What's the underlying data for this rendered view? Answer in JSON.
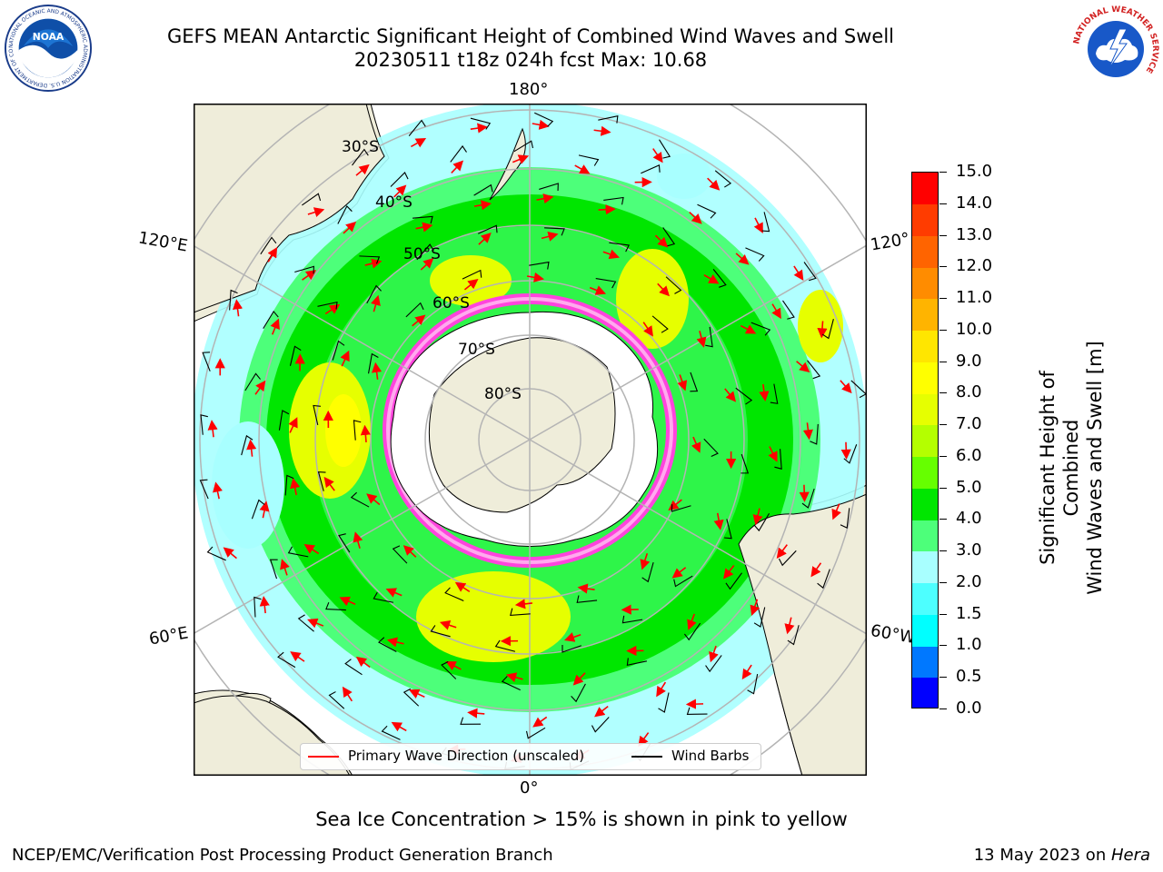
{
  "title": {
    "line1": "GEFS MEAN Antarctic Significant Height of Combined Wind Waves and Swell",
    "line2": "20230511 t18z 024h fcst   Max: 10.68"
  },
  "logos": {
    "left": {
      "icon": "noaa-logo",
      "lettering": "NOAA",
      "ring_text": "NATIONAL OCEANIC AND ATMOSPHERIC ADMINISTRATION  U.S. DEPARTMENT OF COMMERCE"
    },
    "right": {
      "icon": "nws-logo",
      "ring_text": "NATIONAL WEATHER SERVICE"
    }
  },
  "map": {
    "projection": "south-polar-stereographic",
    "longitude_labels": [
      "180°",
      "120°E",
      "120°",
      "60°E",
      "60°W",
      "0°"
    ],
    "latitude_labels": [
      "30°S",
      "40°S",
      "50°S",
      "60°S",
      "70°S",
      "80°S"
    ],
    "colors": {
      "ocean_low": "#a8ffff",
      "ocean_mid": "#4dff7a",
      "ocean_green": "#00e600",
      "ocean_yellow": "#e6ff00",
      "land": "#efedda",
      "antarctica": "#ffffff",
      "sea_ice": "#ff44dd",
      "graticule": "#b4b4b4",
      "wave_arrow": "#ff0000",
      "wind_barb": "#000000"
    }
  },
  "colorbar": {
    "title_line1": "Significant Height of Combined",
    "title_line2": "Wind Waves and Swell [m]",
    "labels": [
      "15.0",
      "14.0",
      "13.0",
      "12.0",
      "11.0",
      "10.0",
      "9.0",
      "8.0",
      "7.0",
      "6.0",
      "5.0",
      "4.0",
      "3.0",
      "2.0",
      "1.5",
      "1.0",
      "0.5",
      "0.0"
    ],
    "colors_bottom_to_top": [
      "#0000ff",
      "#0078ff",
      "#00ffff",
      "#4dffff",
      "#a8ffff",
      "#4dff7a",
      "#00e600",
      "#66ff00",
      "#b4ff00",
      "#e6ff00",
      "#ffff00",
      "#ffe600",
      "#ffb400",
      "#ff8c00",
      "#ff6400",
      "#ff3c00",
      "#ff0000"
    ]
  },
  "legend": {
    "wave_label": "Primary Wave Direction (unscaled)",
    "wind_label": "Wind Barbs"
  },
  "ice_note": "Sea Ice Concentration > 15% is shown in pink to yellow",
  "footer": {
    "left": "NCEP/EMC/Verification Post Processing Product Generation Branch",
    "right_date": "13 May 2023 on ",
    "right_host": "Hera"
  }
}
